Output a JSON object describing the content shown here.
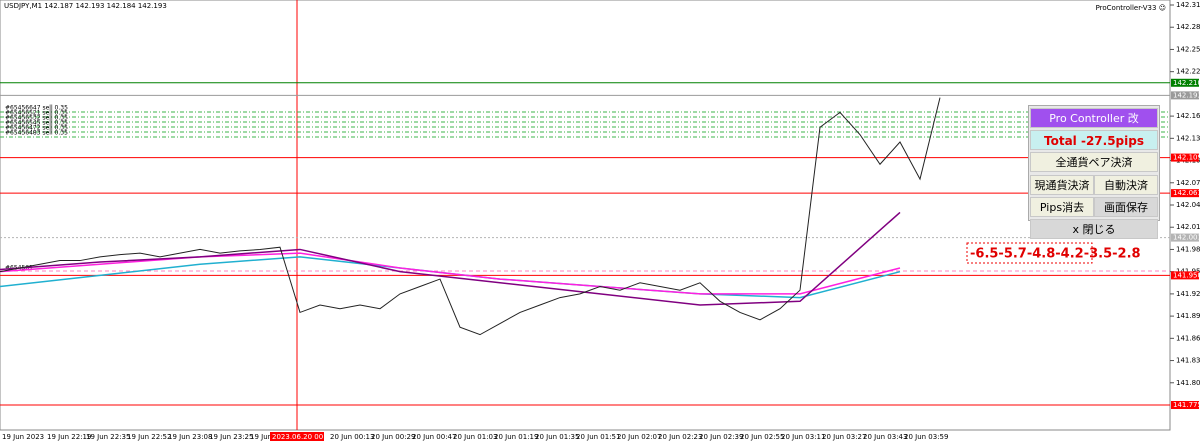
{
  "header": {
    "symbol": "USDJPY,M1  142.187 142.193 142.184 142.193",
    "ea": "ProController-V33 ☺"
  },
  "price_axis": {
    "ylim": [
      141.775,
      142.315
    ],
    "ticks": [
      142.315,
      142.285,
      142.255,
      142.225,
      142.165,
      142.135,
      142.105,
      142.075,
      142.045,
      142.015,
      141.985,
      141.955,
      141.925,
      141.895,
      141.865,
      141.835,
      141.805
    ],
    "levels": [
      {
        "value": 142.21,
        "label": "142.210",
        "color": "#008000"
      },
      {
        "value": 142.193,
        "label": "142.193",
        "color": "#9a9a9a"
      },
      {
        "value": 142.109,
        "label": "142.109",
        "color": "#ff0000"
      },
      {
        "value": 142.061,
        "label": "142.061",
        "color": "#ff0000"
      },
      {
        "value": 142.001,
        "label": "142.001",
        "color": "#b4b4b4"
      },
      {
        "value": 141.95,
        "label": "141.950",
        "color": "#ff0000"
      },
      {
        "value": 141.775,
        "label": "141.775",
        "color": "#ff0000"
      }
    ]
  },
  "time_axis": {
    "labels": [
      "19 Jun 2023",
      "19 Jun 22:19",
      "19 Jun 22:35",
      "19 Jun 22:52",
      "19 Jun 23:08",
      "19 Jun 23:25",
      "19 Jun 2",
      "2023.06.20 00:00",
      "20 Jun 00:13",
      "20 Jun 00:29",
      "20 Jun 00:47",
      "20 Jun 01:03",
      "20 Jun 01:19",
      "20 Jun 01:35",
      "20 Jun 01:51",
      "20 Jun 02:07",
      "20 Jun 02:23",
      "20 Jun 02:39",
      "20 Jun 02:55",
      "20 Jun 03:11",
      "20 Jun 03:27",
      "20 Jun 03:43",
      "20 Jun 03:59"
    ]
  },
  "orders": [
    "#65456647 sell 0.35",
    "#65456521 sell 0.35",
    "#65456532 sell 0.35",
    "#65456545 sell 0.35",
    "#65456472 sell 0.35",
    "#65456483 sell 0.35"
  ],
  "order_tag": "#654561",
  "price": {
    "close": [
      141.955,
      141.96,
      141.965,
      141.97,
      141.97,
      141.975,
      141.978,
      141.98,
      141.975,
      141.98,
      141.985,
      141.98,
      141.983,
      141.985,
      141.988,
      141.9,
      141.91,
      141.905,
      141.91,
      141.905,
      141.925,
      141.935,
      141.945,
      141.88,
      141.87,
      141.885,
      141.9,
      141.91,
      141.92,
      141.925,
      141.935,
      141.93,
      141.94,
      141.935,
      141.93,
      141.94,
      141.915,
      141.9,
      141.89,
      141.905,
      141.93,
      142.15,
      142.17,
      142.14,
      142.1,
      142.13,
      142.08,
      142.19
    ],
    "ma_purple": [
      141.958,
      141.968,
      141.975,
      141.985,
      141.955,
      141.94,
      141.925,
      141.91,
      141.915,
      142.035
    ],
    "ma_cyan": [
      141.935,
      141.95,
      141.965,
      141.975,
      141.96,
      141.945,
      141.935,
      141.925,
      141.92,
      141.955
    ],
    "ma_magenta": [
      141.955,
      141.965,
      141.975,
      141.98,
      141.96,
      141.945,
      141.935,
      141.925,
      141.925,
      141.96
    ]
  },
  "pips_label": "-6.5-5.7-4.8-4.2-3.5-2.8",
  "panel": {
    "title": "Pro Controller 改",
    "total": "Total   -27.5pips",
    "buttons": [
      "全通貨ペア決済",
      "現通貨決済",
      "自動決済",
      "Pips消去",
      "画面保存",
      "x 閉じる"
    ]
  }
}
